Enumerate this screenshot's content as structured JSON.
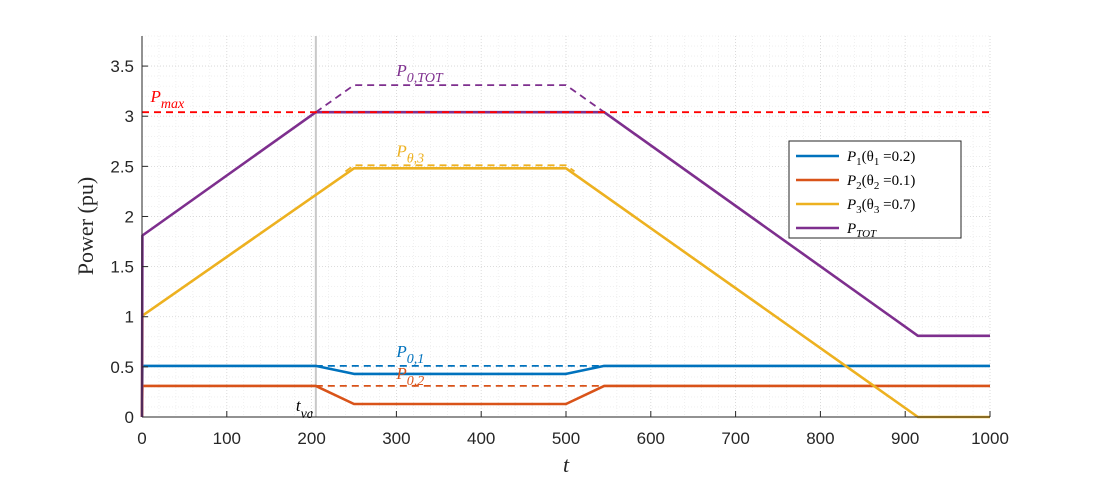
{
  "chart_data": {
    "type": "line",
    "xlabel": "t",
    "ylabel": "Power (pu)",
    "xlim": [
      0,
      1000
    ],
    "ylim": [
      0,
      3.8
    ],
    "xticks": [
      0,
      100,
      200,
      300,
      400,
      500,
      600,
      700,
      800,
      900,
      1000
    ],
    "yticks": [
      0,
      0.5,
      1,
      1.5,
      2,
      2.5,
      3,
      3.5
    ],
    "ytick_labels": [
      "0",
      "0.5",
      "1",
      "1.5",
      "2",
      "2.5",
      "3",
      "3.5"
    ],
    "grid": true,
    "legend_position": "right",
    "colors": {
      "p1": "#0072BD",
      "p2": "#D95319",
      "p3": "#EDB120",
      "tot": "#7E2F8E",
      "pmax": "#FF0000",
      "vline": "#C8C8C8"
    },
    "series": [
      {
        "key": "p1",
        "name": "P1(θ1 =0.2)",
        "style": "solid",
        "x": [
          0,
          0.5,
          205,
          250,
          500,
          545,
          1000
        ],
        "y": [
          0,
          0.51,
          0.51,
          0.43,
          0.43,
          0.51,
          0.51
        ]
      },
      {
        "key": "p2",
        "name": "P2(θ2 =0.1)",
        "style": "solid",
        "x": [
          0,
          0.5,
          205,
          250,
          500,
          545,
          1000
        ],
        "y": [
          0,
          0.31,
          0.31,
          0.13,
          0.13,
          0.31,
          0.31
        ]
      },
      {
        "key": "p3",
        "name": "P3(θ3 =0.7)",
        "style": "solid",
        "x": [
          0,
          0.5,
          250,
          500,
          915,
          1000
        ],
        "y": [
          0,
          1.01,
          2.48,
          2.48,
          0.0,
          0.0
        ]
      },
      {
        "key": "tot",
        "name": "PTOT",
        "style": "solid",
        "x": [
          0,
          0.5,
          205,
          545,
          915,
          1000
        ],
        "y": [
          0,
          1.81,
          3.04,
          3.04,
          0.81,
          0.81
        ]
      },
      {
        "key": "p1",
        "name": "P0,1",
        "style": "dashed",
        "x": [
          205,
          250,
          500,
          545
        ],
        "y": [
          0.51,
          0.51,
          0.51,
          0.51
        ]
      },
      {
        "key": "p2",
        "name": "P0,2",
        "style": "dashed",
        "x": [
          205,
          545
        ],
        "y": [
          0.31,
          0.31
        ]
      },
      {
        "key": "p3",
        "name": "P0,3",
        "style": "dashed",
        "x": [
          240,
          250,
          500,
          510
        ],
        "y": [
          2.45,
          2.51,
          2.51,
          2.45
        ]
      },
      {
        "key": "tot",
        "name": "P0,TOT",
        "style": "dashed",
        "x": [
          205,
          250,
          500,
          545
        ],
        "y": [
          3.04,
          3.31,
          3.31,
          3.04
        ]
      },
      {
        "key": "pmax",
        "name": "Pmax",
        "style": "dashed",
        "x": [
          0,
          1000
        ],
        "y": [
          3.04,
          3.04
        ]
      }
    ],
    "vline": {
      "x": 205,
      "label": "tvc"
    },
    "annotations": [
      {
        "key": "tot",
        "base": "P",
        "sub": "0,TOT",
        "x": 300,
        "y": 3.4
      },
      {
        "key": "p3",
        "base": "P",
        "sub": "θ,3",
        "x": 300,
        "y": 2.6
      },
      {
        "key": "p1",
        "base": "P",
        "sub": "0,1",
        "x": 300,
        "y": 0.6
      },
      {
        "key": "p2",
        "base": "P",
        "sub": "0,2",
        "x": 300,
        "y": 0.38
      },
      {
        "key": "pmax",
        "base": "P",
        "sub": "max",
        "x": 10,
        "y": 3.14
      }
    ],
    "legend": [
      {
        "key": "p1",
        "base": "P",
        "sub": "1",
        "rest": "(θ",
        "sub2": "1",
        "tail": " =0.2)"
      },
      {
        "key": "p2",
        "base": "P",
        "sub": "2",
        "rest": "(θ",
        "sub2": "2",
        "tail": " =0.1)"
      },
      {
        "key": "p3",
        "base": "P",
        "sub": "3",
        "rest": "(θ",
        "sub2": "3",
        "tail": " =0.7)"
      },
      {
        "key": "tot",
        "base": "P",
        "sub": "TOT",
        "rest": "",
        "sub2": "",
        "tail": ""
      }
    ]
  }
}
